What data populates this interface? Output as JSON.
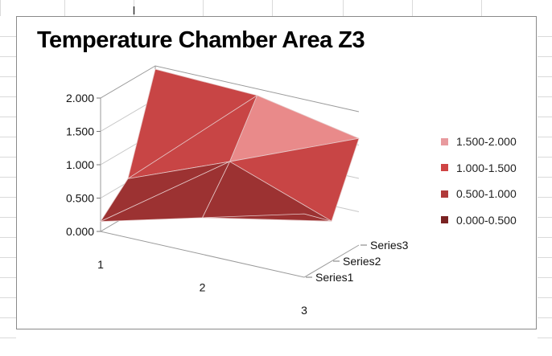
{
  "chart_data": {
    "type": "surface-3d",
    "title": "Temperature Chamber Area Z3",
    "categories": [
      "1",
      "2",
      "3"
    ],
    "series": [
      {
        "name": "Series1",
        "values": [
          0.15,
          0.55,
          0.95
        ]
      },
      {
        "name": "Series2",
        "values": [
          0.55,
          1.15,
          0.6
        ]
      },
      {
        "name": "Series3",
        "values": [
          1.95,
          1.9,
          1.6
        ]
      }
    ],
    "z_ticks": [
      "0.000",
      "0.500",
      "1.000",
      "1.500",
      "2.000"
    ],
    "zlim": [
      0,
      2
    ],
    "legend": {
      "position": "right",
      "items": [
        {
          "label": "1.500-2.000",
          "color": "#e89a9e"
        },
        {
          "label": "1.000-1.500",
          "color": "#cf4444"
        },
        {
          "label": "0.500-1.000",
          "color": "#b03a3a"
        },
        {
          "label": "0.000-0.500",
          "color": "#7a2222"
        }
      ]
    },
    "band_colors": [
      "#6b1c1c",
      "#9c3232",
      "#c84545",
      "#e98a8a"
    ],
    "grid": true
  }
}
